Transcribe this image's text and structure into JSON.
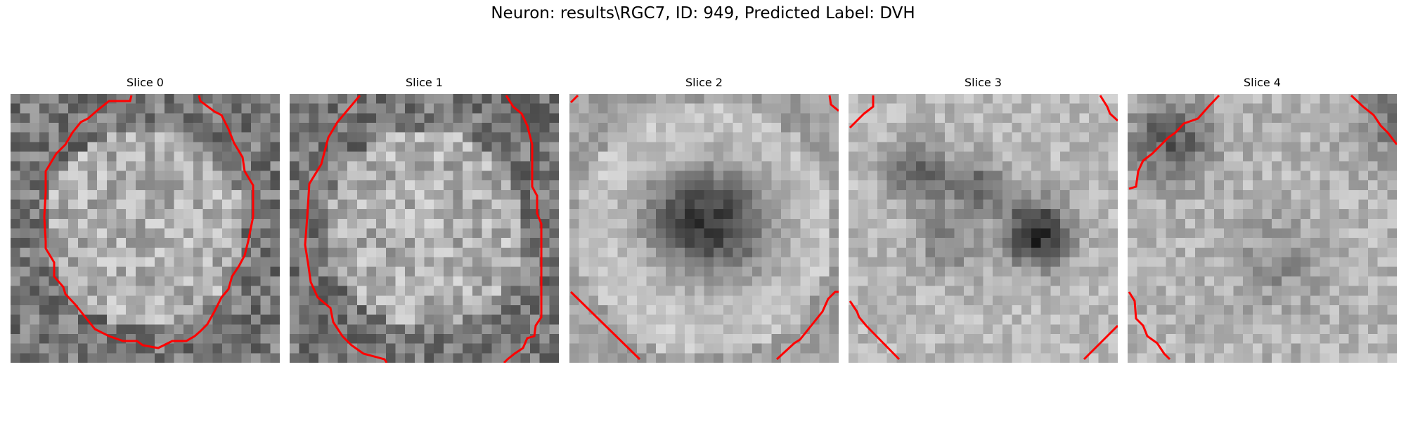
{
  "figure": {
    "title": "Neuron: results\\RGC7, ID: 949, Predicted Label: DVH"
  },
  "colors": {
    "contour": "#ff0000",
    "colormap": "gray"
  },
  "slices": [
    {
      "label": "Slice 0",
      "pattern": "bright-disc-dark-rim"
    },
    {
      "label": "Slice 1",
      "pattern": "bright-disc-dark-rim"
    },
    {
      "label": "Slice 2",
      "pattern": "bright-ring-dark-center"
    },
    {
      "label": "Slice 3",
      "pattern": "bright-ring-dark-blobs"
    },
    {
      "label": "Slice 4",
      "pattern": "bright-field-dark-corner"
    }
  ]
}
